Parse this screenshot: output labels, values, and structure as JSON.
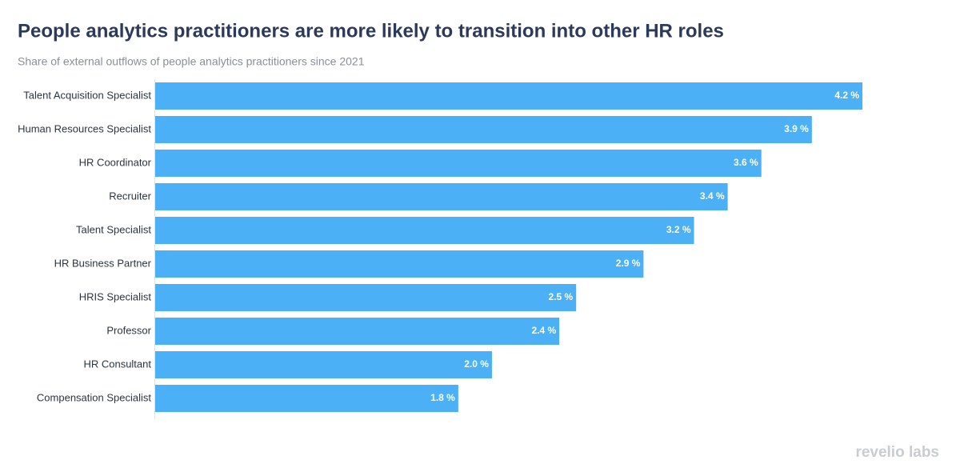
{
  "chart_data": {
    "type": "hbar",
    "title": "People analytics practitioners are more likely to transition into other HR roles",
    "subtitle": "Share of external outflows of people analytics practitioners since 2021",
    "categories": [
      "Talent Acquisition Specialist",
      "Human Resources Specialist",
      "HR Coordinator",
      "Recruiter",
      "Talent Specialist",
      "HR Business Partner",
      "HRIS Specialist",
      "Professor",
      "HR Consultant",
      "Compensation Specialist"
    ],
    "values": [
      4.2,
      3.9,
      3.6,
      3.4,
      3.2,
      2.9,
      2.5,
      2.4,
      2.0,
      1.8
    ],
    "value_labels": [
      "4.2 %",
      "3.9 %",
      "3.6 %",
      "3.4 %",
      "3.2 %",
      "2.9 %",
      "2.5 %",
      "2.4 %",
      "2.0 %",
      "1.8 %"
    ],
    "color": "#4bb0f5",
    "watermark": "revelio labs"
  }
}
